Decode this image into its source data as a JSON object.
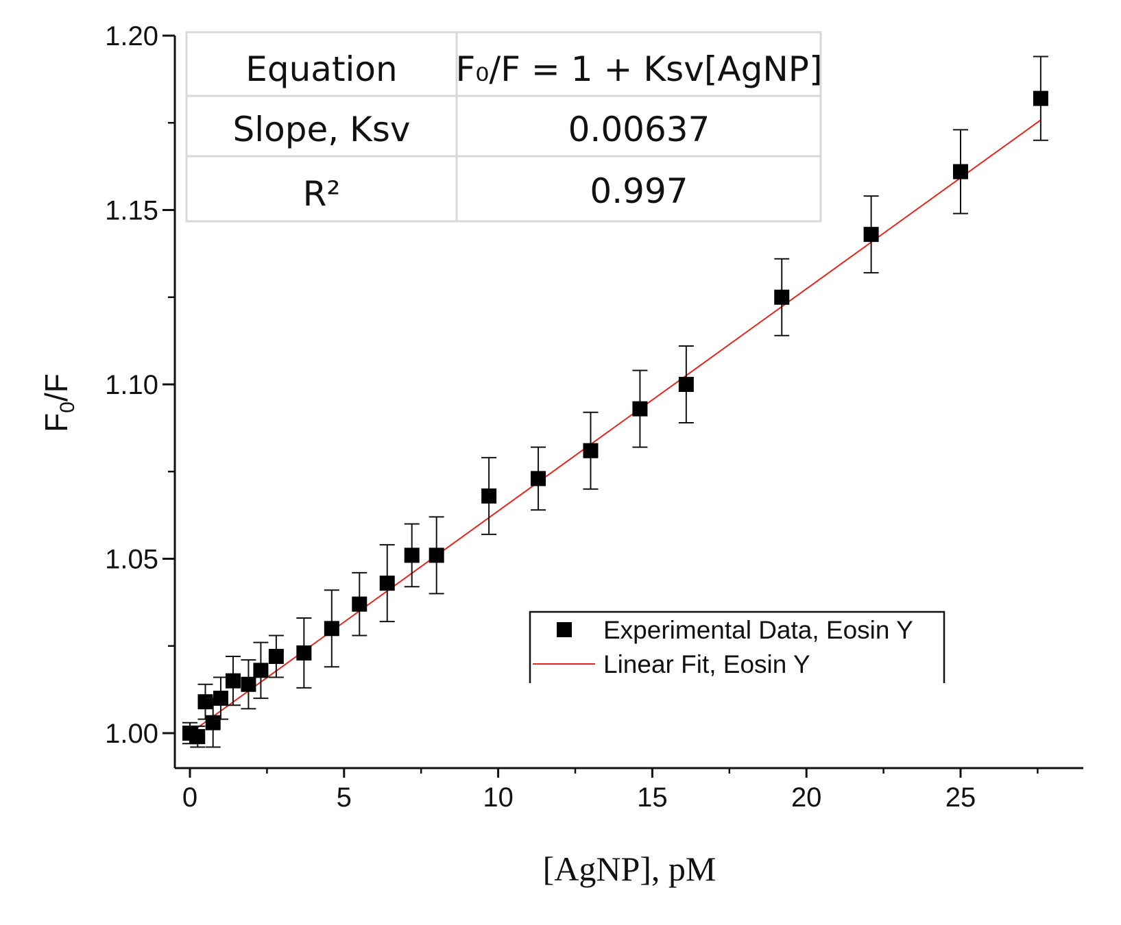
{
  "chart_data": {
    "type": "scatter",
    "title": "",
    "xlabel": "[AgNP], pM",
    "ylabel": {
      "main": "F",
      "sub": "0",
      "tail": "/F"
    },
    "xlim": [
      -0.5,
      29
    ],
    "ylim": [
      0.99,
      1.2
    ],
    "x_ticks": [
      0,
      5,
      10,
      15,
      20,
      25
    ],
    "x_tick_labels": [
      "0",
      "5",
      "10",
      "15",
      "20",
      "25"
    ],
    "y_ticks": [
      1.0,
      1.05,
      1.1,
      1.15,
      1.2
    ],
    "y_tick_labels": [
      "1.00",
      "1.05",
      "1.10",
      "1.15",
      "1.20"
    ],
    "grid": false,
    "series": [
      {
        "name": "Experimental Data, Eosin Y",
        "kind": "scatter",
        "marker": "square",
        "color": "#000000",
        "x": [
          0.0,
          0.25,
          0.5,
          0.75,
          1.0,
          1.4,
          1.9,
          2.3,
          2.8,
          3.7,
          4.6,
          5.5,
          6.4,
          7.2,
          8.0,
          9.7,
          11.3,
          13.0,
          14.6,
          16.1,
          19.2,
          22.1,
          25.0,
          27.6
        ],
        "y": [
          1.0,
          0.999,
          1.009,
          1.003,
          1.01,
          1.015,
          1.014,
          1.018,
          1.022,
          1.023,
          1.03,
          1.037,
          1.043,
          1.051,
          1.051,
          1.068,
          1.073,
          1.081,
          1.093,
          1.1,
          1.125,
          1.143,
          1.161,
          1.182
        ],
        "error": [
          0.003,
          0.003,
          0.005,
          0.007,
          0.006,
          0.007,
          0.007,
          0.008,
          0.006,
          0.01,
          0.011,
          0.009,
          0.011,
          0.009,
          0.011,
          0.011,
          0.009,
          0.011,
          0.011,
          0.011,
          0.011,
          0.011,
          0.012,
          0.012
        ]
      },
      {
        "name": "Linear Fit, Eosin Y",
        "kind": "line",
        "color": "#e8231b",
        "x": [
          0.0,
          27.6
        ],
        "y": [
          1.0,
          1.1758
        ]
      }
    ],
    "legend": {
      "position": "bottom-right"
    },
    "annotation_table": {
      "rows": [
        {
          "label": "Equation",
          "value": "F₀/F = 1 + Ksv[AgNP]"
        },
        {
          "label": "Slope, Ksv",
          "value": "0.00637"
        },
        {
          "label": "R²",
          "value": "0.997"
        }
      ]
    }
  }
}
